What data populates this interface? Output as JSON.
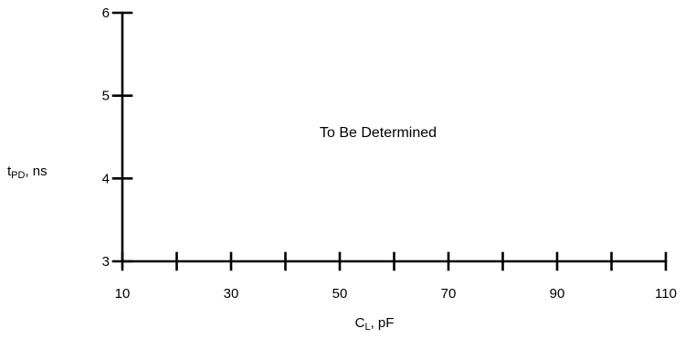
{
  "chart_data": {
    "type": "line",
    "title": "",
    "xlabel": {
      "main": "C",
      "sub": "L",
      "rest": ", pF"
    },
    "ylabel": {
      "main": "t",
      "sub": "PD",
      "rest": ", ns"
    },
    "xlim": [
      10,
      110
    ],
    "ylim": [
      3,
      6
    ],
    "x_ticks": [
      10,
      20,
      30,
      40,
      50,
      60,
      70,
      80,
      90,
      100,
      110
    ],
    "x_tick_labels": [
      "10",
      "",
      "30",
      "",
      "50",
      "",
      "70",
      "",
      "90",
      "",
      "110"
    ],
    "y_ticks": [
      3,
      4,
      5,
      6
    ],
    "y_tick_labels": [
      "3",
      "4",
      "5",
      "6"
    ],
    "grid": false,
    "series": [],
    "annotation": "To Be Determined"
  }
}
